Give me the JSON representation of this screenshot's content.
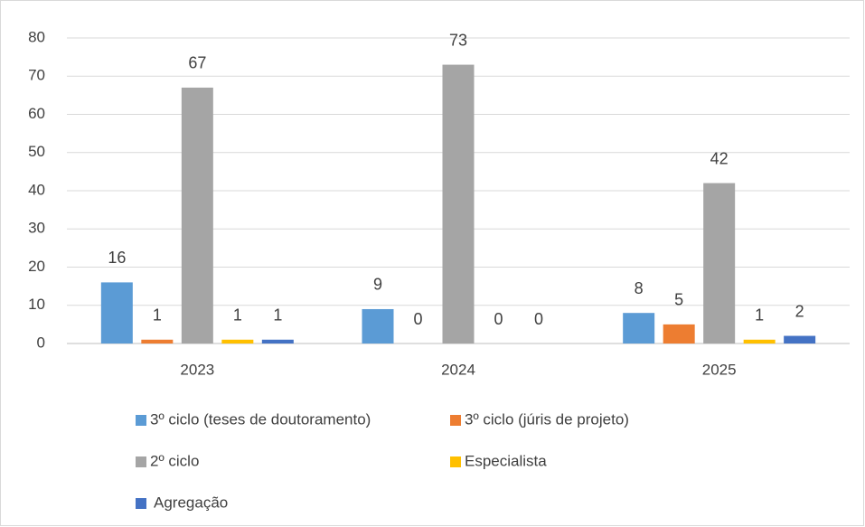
{
  "chart_data": {
    "type": "bar",
    "categories": [
      "2023",
      "2024",
      "2025"
    ],
    "series": [
      {
        "name": "3º ciclo (teses de doutoramento)",
        "color": "#5b9bd5",
        "values": [
          16,
          9,
          8
        ]
      },
      {
        "name": "3º ciclo (júris de projeto)",
        "color": "#ed7d31",
        "values": [
          1,
          0,
          5
        ]
      },
      {
        "name": "2º ciclo",
        "color": "#a5a5a5",
        "values": [
          67,
          73,
          42
        ]
      },
      {
        "name": "Especialista",
        "color": "#ffc000",
        "values": [
          1,
          0,
          1
        ]
      },
      {
        "name": "Agregação",
        "color": "#4472c4",
        "values": [
          1,
          0,
          2
        ]
      }
    ],
    "ylim": [
      0,
      80
    ],
    "yticks": [
      0,
      10,
      20,
      30,
      40,
      50,
      60,
      70,
      80
    ],
    "grid": true
  }
}
